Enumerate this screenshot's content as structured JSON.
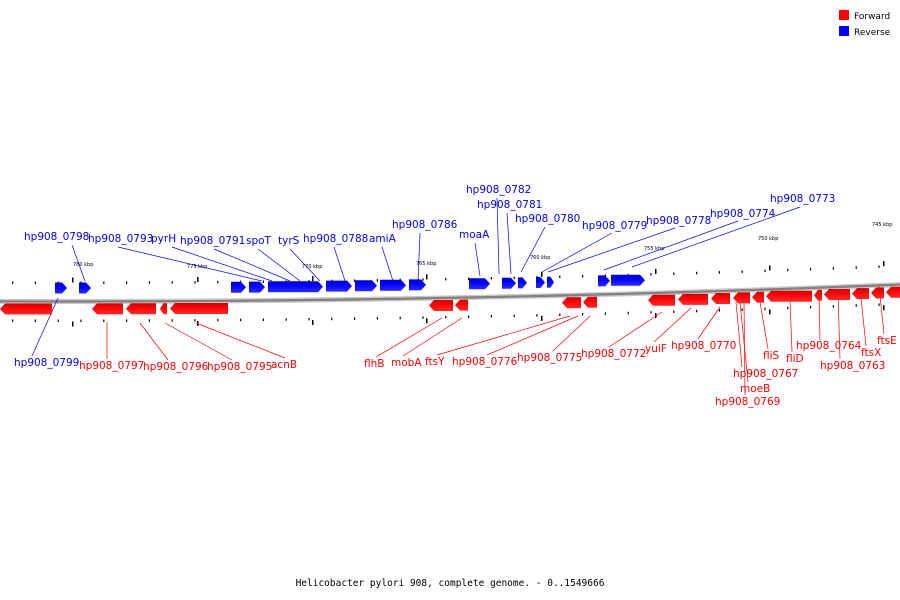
{
  "caption": "Helicobacter pylori 908, complete genome. - 0..1549666",
  "legend": [
    {
      "label": "Forward",
      "color": "#ff0000"
    },
    {
      "label": "Reverse",
      "color": "#0000ff"
    }
  ],
  "colors": {
    "forward": "#ff0000",
    "reverse": "#0000ff",
    "backbone": "#808080"
  },
  "scale_labels": [
    "780 kbp",
    "775 kbp",
    "770 kbp",
    "765 kbp",
    "760 kbp",
    "755 kbp",
    "750 kbp",
    "745 kbp"
  ],
  "reverse_labels": [
    "hp908_0798",
    "hp908_0793",
    "pyrH",
    "hp908_0791",
    "spoT",
    "tyrS",
    "hp908_0788",
    "amiA",
    "hp908_0786",
    "moaA",
    "hp908_0782",
    "hp908_0781",
    "hp908_0780",
    "hp908_0779",
    "hp908_0778",
    "hp908_0774",
    "hp908_0773",
    "hp908_0799"
  ],
  "forward_labels": [
    "hp908_0797",
    "hp908_0796",
    "hp908_0795",
    "acnB",
    "flhB",
    "mobA",
    "ftsY",
    "hp908_0776",
    "hp908_0775",
    "hp908_0772",
    "yuiF",
    "hp908_0770",
    "hp908_0767",
    "moeB",
    "hp908_0769",
    "fliS",
    "fliD",
    "hp908_0764",
    "hp908_0763",
    "ftsX",
    "ftsE"
  ]
}
